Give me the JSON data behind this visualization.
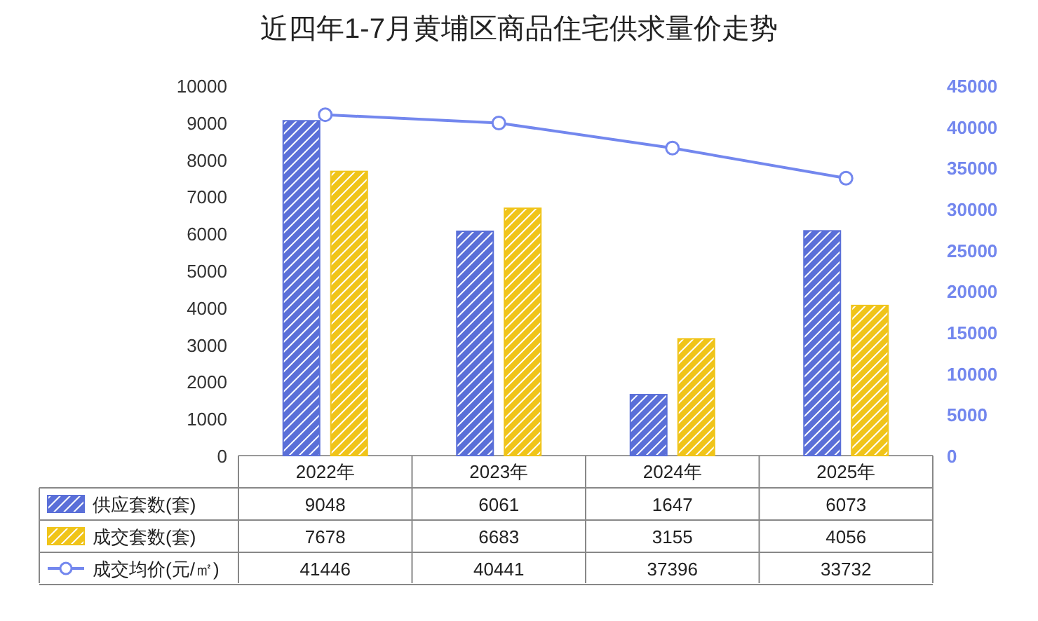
{
  "chart_data": {
    "type": "bar",
    "title": "近四年1-7月黄埔区商品住宅供求量价走势",
    "categories": [
      "2022年",
      "2023年",
      "2024年",
      "2025年"
    ],
    "series": [
      {
        "name": "供应套数(套)",
        "color": "#5a6fd8",
        "values": [
          9048,
          6061,
          1647,
          6073
        ]
      },
      {
        "name": "成交套数(套)",
        "color": "#f0c419",
        "values": [
          7678,
          6683,
          3155,
          4056
        ]
      },
      {
        "name": "成交均价(元/㎡)",
        "type": "line",
        "axis": "y2",
        "color": "#7387ee",
        "values": [
          41446,
          40441,
          37396,
          33732
        ]
      }
    ],
    "ylim": [
      0,
      10000
    ],
    "yticks": [
      0,
      1000,
      2000,
      3000,
      4000,
      5000,
      6000,
      7000,
      8000,
      9000,
      10000
    ],
    "y2lim": [
      0,
      45000
    ],
    "y2ticks": [
      0,
      5000,
      10000,
      15000,
      20000,
      25000,
      30000,
      35000,
      40000,
      45000
    ],
    "data_labels": true,
    "legend": "bottom",
    "marker": "circle"
  }
}
